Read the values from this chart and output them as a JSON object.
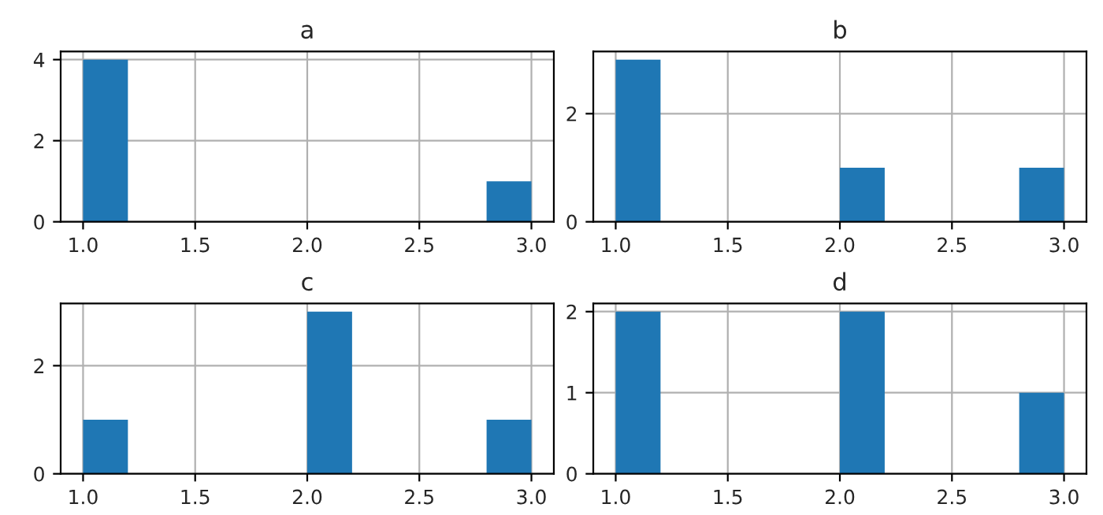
{
  "chart_data": [
    {
      "type": "histogram",
      "title": "a",
      "bins": [
        1.0,
        1.2,
        1.4,
        1.6,
        1.8,
        2.0,
        2.2,
        2.4,
        2.6,
        2.8,
        3.0
      ],
      "values": [
        4,
        0,
        0,
        0,
        0,
        0,
        0,
        0,
        0,
        1
      ],
      "color": "#1f77b4",
      "xlim": [
        0.9,
        3.1
      ],
      "ylim": [
        0,
        4.2
      ],
      "xticks": [
        {
          "value": 1,
          "label": "1.0"
        },
        {
          "value": 1.5,
          "label": "1.5"
        },
        {
          "value": 2,
          "label": "2.0"
        },
        {
          "value": 2.5,
          "label": "2.5"
        },
        {
          "value": 3,
          "label": "3.0"
        }
      ],
      "yticks": [
        0,
        2,
        4
      ],
      "grid": true
    },
    {
      "type": "histogram",
      "title": "b",
      "bins": [
        1.0,
        1.2,
        1.4,
        1.6,
        1.8,
        2.0,
        2.2,
        2.4,
        2.6,
        2.8,
        3.0
      ],
      "values": [
        3,
        0,
        0,
        0,
        0,
        1,
        0,
        0,
        0,
        1
      ],
      "color": "#1f77b4",
      "xlim": [
        0.9,
        3.1
      ],
      "ylim": [
        0,
        3.15
      ],
      "xticks": [
        {
          "value": 1,
          "label": "1.0"
        },
        {
          "value": 1.5,
          "label": "1.5"
        },
        {
          "value": 2,
          "label": "2.0"
        },
        {
          "value": 2.5,
          "label": "2.5"
        },
        {
          "value": 3,
          "label": "3.0"
        }
      ],
      "yticks": [
        0,
        2
      ],
      "grid": true
    },
    {
      "type": "histogram",
      "title": "c",
      "bins": [
        1.0,
        1.2,
        1.4,
        1.6,
        1.8,
        2.0,
        2.2,
        2.4,
        2.6,
        2.8,
        3.0
      ],
      "values": [
        1,
        0,
        0,
        0,
        0,
        3,
        0,
        0,
        0,
        1
      ],
      "color": "#1f77b4",
      "xlim": [
        0.9,
        3.1
      ],
      "ylim": [
        0,
        3.15
      ],
      "xticks": [
        {
          "value": 1,
          "label": "1.0"
        },
        {
          "value": 1.5,
          "label": "1.5"
        },
        {
          "value": 2,
          "label": "2.0"
        },
        {
          "value": 2.5,
          "label": "2.5"
        },
        {
          "value": 3,
          "label": "3.0"
        }
      ],
      "yticks": [
        0,
        2
      ],
      "grid": true
    },
    {
      "type": "histogram",
      "title": "d",
      "bins": [
        1.0,
        1.2,
        1.4,
        1.6,
        1.8,
        2.0,
        2.2,
        2.4,
        2.6,
        2.8,
        3.0
      ],
      "values": [
        2,
        0,
        0,
        0,
        0,
        2,
        0,
        0,
        0,
        1
      ],
      "color": "#1f77b4",
      "xlim": [
        0.9,
        3.1
      ],
      "ylim": [
        0,
        2.1
      ],
      "xticks": [
        {
          "value": 1,
          "label": "1.0"
        },
        {
          "value": 1.5,
          "label": "1.5"
        },
        {
          "value": 2,
          "label": "2.0"
        },
        {
          "value": 2.5,
          "label": "2.5"
        },
        {
          "value": 3,
          "label": "3.0"
        }
      ],
      "yticks": [
        0,
        1,
        2
      ],
      "grid": true
    }
  ]
}
